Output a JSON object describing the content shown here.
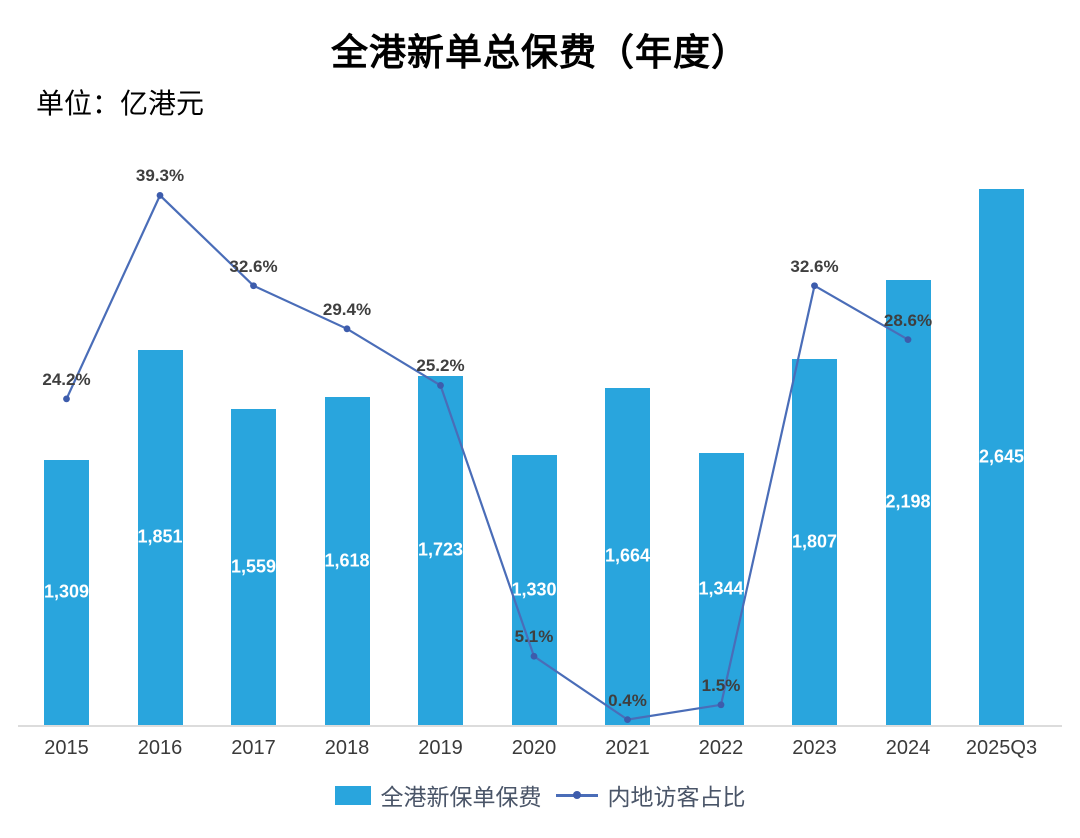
{
  "header": {
    "title": "全港新单总保费（年度）",
    "unit_label": "单位：亿港元"
  },
  "legend": {
    "items": [
      {
        "label": "全港新保单保费",
        "marker": "bar-swatch",
        "color": "#29A5DD"
      },
      {
        "label": "内地访客占比",
        "marker": "line-dot",
        "color": "#4A6DB8"
      }
    ]
  },
  "chart_data": {
    "type": "bar",
    "title": "全港新单总保费（年度）",
    "xlabel": "",
    "ylabel": "亿港元",
    "categories": [
      "2015",
      "2016",
      "2017",
      "2018",
      "2019",
      "2020",
      "2021",
      "2022",
      "2023",
      "2024",
      "2025Q3"
    ],
    "series": [
      {
        "name": "全港新保单保费",
        "chart_type": "bar",
        "axis": "left",
        "values": [
          1309,
          1851,
          1559,
          1618,
          1723,
          1330,
          1664,
          1344,
          1807,
          2198,
          2645
        ],
        "data_labels": [
          "1,309",
          "1,851",
          "1,559",
          "1,618",
          "1,723",
          "1,330",
          "1,664",
          "1,344",
          "1,807",
          "2,198",
          "2,645"
        ]
      },
      {
        "name": "内地访客占比",
        "chart_type": "line",
        "axis": "right",
        "values": [
          24.2,
          39.3,
          32.6,
          29.4,
          25.2,
          5.1,
          0.4,
          1.5,
          32.6,
          28.6,
          null
        ],
        "data_labels": [
          "24.2%",
          "39.3%",
          "32.6%",
          "29.4%",
          "25.2%",
          "5.1%",
          "0.4%",
          "1.5%",
          "32.6%",
          "28.6%",
          null
        ]
      }
    ],
    "ylim": [
      0,
      2650
    ],
    "y2lim": [
      0,
      40
    ],
    "grid": false,
    "legend_position": "bottom",
    "colors": {
      "bar": "#29A5DD",
      "line": "#4A6DB8",
      "marker": "#3D5CAC",
      "bar_data_label": "#FFFFFF",
      "line_data_label": "#3F3F3F",
      "axis_text": "#3A3A3A",
      "baseline": "#DCDCDC",
      "title_text": "#000000",
      "legend_text": "#4A5568"
    }
  }
}
